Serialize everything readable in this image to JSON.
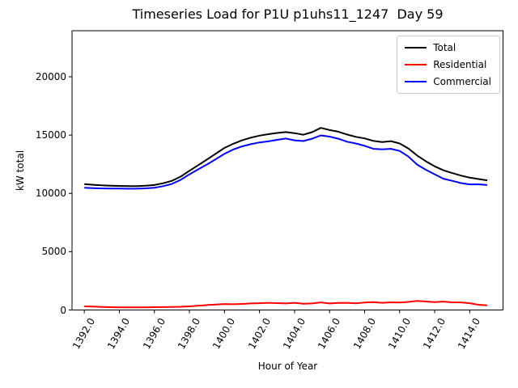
{
  "chart_data": {
    "type": "line",
    "title": "Timeseries Load for P1U p1uhs11_1247  Day 59",
    "xlabel": "Hour of Year",
    "ylabel": "kW total",
    "xlim": [
      1391.3,
      1415.9
    ],
    "ylim": [
      0,
      23950
    ],
    "grid": false,
    "legend_position": "upper right",
    "x_ticks": [
      {
        "value": 1392,
        "label": "1392.0"
      },
      {
        "value": 1394,
        "label": "1394.0"
      },
      {
        "value": 1396,
        "label": "1396.0"
      },
      {
        "value": 1398,
        "label": "1398.0"
      },
      {
        "value": 1400,
        "label": "1400.0"
      },
      {
        "value": 1402,
        "label": "1402.0"
      },
      {
        "value": 1404,
        "label": "1404.0"
      },
      {
        "value": 1406,
        "label": "1406.0"
      },
      {
        "value": 1408,
        "label": "1408.0"
      },
      {
        "value": 1410,
        "label": "1410.0"
      },
      {
        "value": 1412,
        "label": "1412.0"
      },
      {
        "value": 1414,
        "label": "1414.0"
      }
    ],
    "y_ticks": [
      {
        "value": 0,
        "label": "0"
      },
      {
        "value": 5000,
        "label": "5000"
      },
      {
        "value": 10000,
        "label": "10000"
      },
      {
        "value": 15000,
        "label": "15000"
      },
      {
        "value": 20000,
        "label": "20000"
      }
    ],
    "x": [
      1392.0,
      1392.5,
      1393.0,
      1393.5,
      1394.0,
      1394.5,
      1395.0,
      1395.5,
      1396.0,
      1396.5,
      1397.0,
      1397.5,
      1398.0,
      1398.5,
      1399.0,
      1399.5,
      1400.0,
      1400.5,
      1401.0,
      1401.5,
      1402.0,
      1402.5,
      1403.0,
      1403.5,
      1404.0,
      1404.5,
      1405.0,
      1405.5,
      1406.0,
      1406.5,
      1407.0,
      1407.5,
      1408.0,
      1408.5,
      1409.0,
      1409.5,
      1410.0,
      1410.5,
      1411.0,
      1411.5,
      1412.0,
      1412.5,
      1413.0,
      1413.5,
      1414.0,
      1414.5,
      1415.0
    ],
    "series": [
      {
        "name": "Total",
        "color": "#000000",
        "values": [
          10800,
          10740,
          10690,
          10660,
          10640,
          10620,
          10630,
          10660,
          10720,
          10870,
          11080,
          11440,
          11940,
          12420,
          12900,
          13400,
          13900,
          14250,
          14550,
          14780,
          14950,
          15080,
          15180,
          15260,
          15170,
          15030,
          15250,
          15620,
          15430,
          15290,
          15050,
          14850,
          14720,
          14500,
          14400,
          14480,
          14280,
          13850,
          13250,
          12750,
          12320,
          11980,
          11740,
          11530,
          11350,
          11230,
          11120
        ]
      },
      {
        "name": "Residential",
        "color": "#ff0000",
        "values": [
          310,
          290,
          265,
          245,
          230,
          220,
          225,
          230,
          240,
          250,
          265,
          280,
          310,
          360,
          420,
          470,
          510,
          490,
          520,
          560,
          580,
          620,
          590,
          560,
          620,
          540,
          560,
          650,
          560,
          600,
          620,
          570,
          640,
          680,
          620,
          660,
          640,
          690,
          780,
          730,
          680,
          720,
          660,
          650,
          580,
          450,
          400
        ]
      },
      {
        "name": "Commercial",
        "color": "#0000ff",
        "values": [
          10490,
          10450,
          10425,
          10415,
          10410,
          10400,
          10405,
          10430,
          10480,
          10620,
          10815,
          11160,
          11630,
          12060,
          12480,
          12930,
          13390,
          13760,
          14030,
          14220,
          14370,
          14460,
          14590,
          14700,
          14550,
          14490,
          14690,
          14970,
          14870,
          14690,
          14430,
          14280,
          14080,
          13820,
          13780,
          13820,
          13640,
          13160,
          12470,
          12020,
          11640,
          11260,
          11080,
          10880,
          10770,
          10780,
          10720
        ]
      }
    ]
  }
}
